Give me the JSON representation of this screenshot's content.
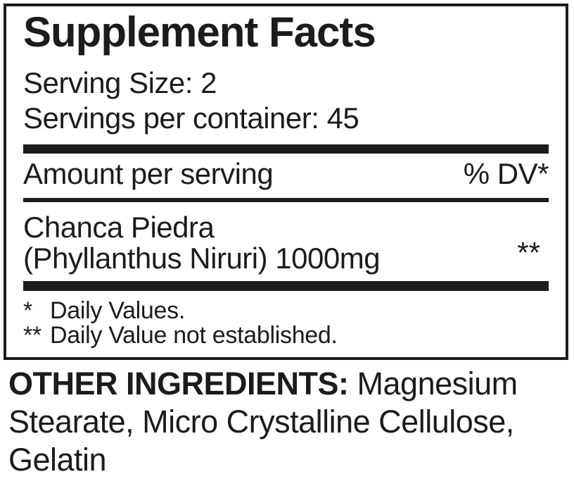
{
  "panel": {
    "title": "Supplement Facts",
    "serving_size": "Serving Size: 2",
    "servings_per_container": "Servings per container: 45",
    "amount_header": "Amount per serving",
    "dv_header": "% DV*",
    "ingredient": {
      "name_line1": "Chanca Piedra",
      "name_line2": "(Phyllanthus Niruri) 1000mg",
      "dv_value": "**"
    },
    "footnotes": [
      {
        "marker": "*",
        "text": "Daily Values."
      },
      {
        "marker": "**",
        "text": "Daily Value not established."
      }
    ]
  },
  "other_ingredients": {
    "label": "OTHER INGREDIENTS:",
    "line1_rest": " Magnesium",
    "line2": "Stearate, Micro Crystalline Cellulose,",
    "line3": "Gelatin"
  },
  "colors": {
    "ink": "#1c1c1c",
    "background": "#ffffff"
  }
}
